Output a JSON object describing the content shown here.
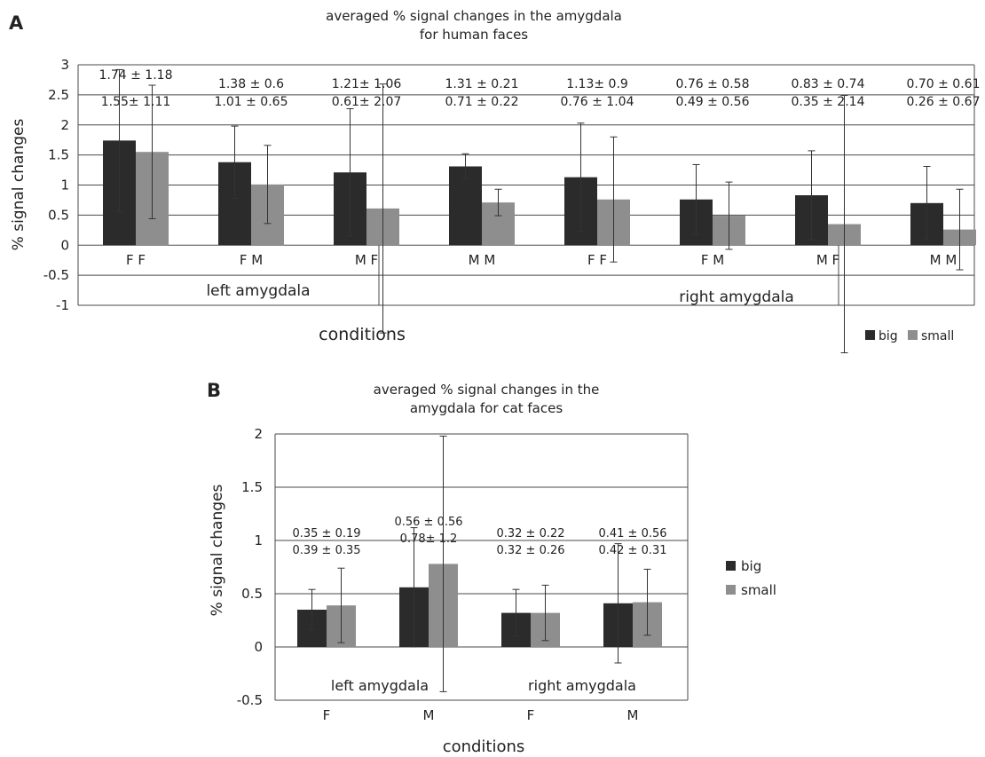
{
  "colors": {
    "big": "#2b2b2b",
    "small": "#8e8e8e",
    "grid": "#4a4a4a",
    "text": "#222222"
  },
  "chart_data": [
    {
      "panel": "A",
      "type": "bar",
      "title": [
        "averaged % signal changes in the amygdala",
        "for human faces"
      ],
      "xlabel": "conditions",
      "ylabel": "% signal changes",
      "ylim": [
        -1,
        3
      ],
      "yticks": [
        "3",
        "2.5",
        "2",
        "1.5",
        "1",
        "0.5",
        "0",
        "-0.5",
        "-1"
      ],
      "grid": true,
      "legend_position": "bottom-right",
      "categories": [
        "F F",
        "F M",
        "M F",
        "M M",
        "F F",
        "F M",
        "M F",
        "M M"
      ],
      "groups": [
        "left amygdala",
        "right amygdala"
      ],
      "series": [
        {
          "name": "big",
          "values": [
            1.74,
            1.38,
            1.21,
            1.31,
            1.13,
            0.76,
            0.83,
            0.7
          ],
          "errors": [
            1.18,
            0.6,
            1.06,
            0.21,
            0.9,
            0.58,
            0.74,
            0.61
          ]
        },
        {
          "name": "small",
          "values": [
            1.55,
            1.01,
            0.61,
            0.71,
            0.76,
            0.49,
            0.35,
            0.26
          ],
          "errors": [
            1.11,
            0.65,
            2.07,
            0.22,
            1.04,
            0.56,
            2.14,
            0.67
          ]
        }
      ],
      "annotations": [
        [
          "1.74 ± 1.18",
          "1.55± 1.11"
        ],
        [
          "1.38 ± 0.6",
          "1.01 ± 0.65"
        ],
        [
          "1.21± 1.06",
          "0.61± 2.07"
        ],
        [
          "1.31 ± 0.21",
          "0.71 ± 0.22"
        ],
        [
          "1.13± 0.9",
          "0.76 ± 1.04"
        ],
        [
          "0.76 ± 0.58",
          "0.49 ± 0.56"
        ],
        [
          "0.83 ± 0.74",
          "0.35 ± 2.14"
        ],
        [
          "0.70 ± 0.61",
          "0.26 ± 0.67"
        ]
      ]
    },
    {
      "panel": "B",
      "type": "bar",
      "title": [
        "averaged % signal changes in the",
        "amygdala for cat faces"
      ],
      "xlabel": "conditions",
      "ylabel": "% signal changes",
      "ylim": [
        -0.5,
        2
      ],
      "yticks": [
        "2",
        "1.5",
        "1",
        "0.5",
        "0",
        "-0.5"
      ],
      "grid": true,
      "legend_position": "right",
      "categories": [
        "F",
        "M",
        "F",
        "M"
      ],
      "groups": [
        "left amygdala",
        "right amygdala"
      ],
      "series": [
        {
          "name": "big",
          "values": [
            0.35,
            0.56,
            0.32,
            0.41
          ],
          "errors": [
            0.19,
            0.56,
            0.22,
            0.56
          ]
        },
        {
          "name": "small",
          "values": [
            0.39,
            0.78,
            0.32,
            0.42
          ],
          "errors": [
            0.35,
            1.2,
            0.26,
            0.31
          ]
        }
      ],
      "annotations": [
        [
          "0.35 ± 0.19",
          "0.39 ± 0.35"
        ],
        [
          "0.56 ± 0.56",
          "0.78± 1.2"
        ],
        [
          "0.32 ± 0.22",
          "0.32 ± 0.26"
        ],
        [
          "0.41 ± 0.56",
          "0.42 ± 0.31"
        ]
      ]
    }
  ]
}
